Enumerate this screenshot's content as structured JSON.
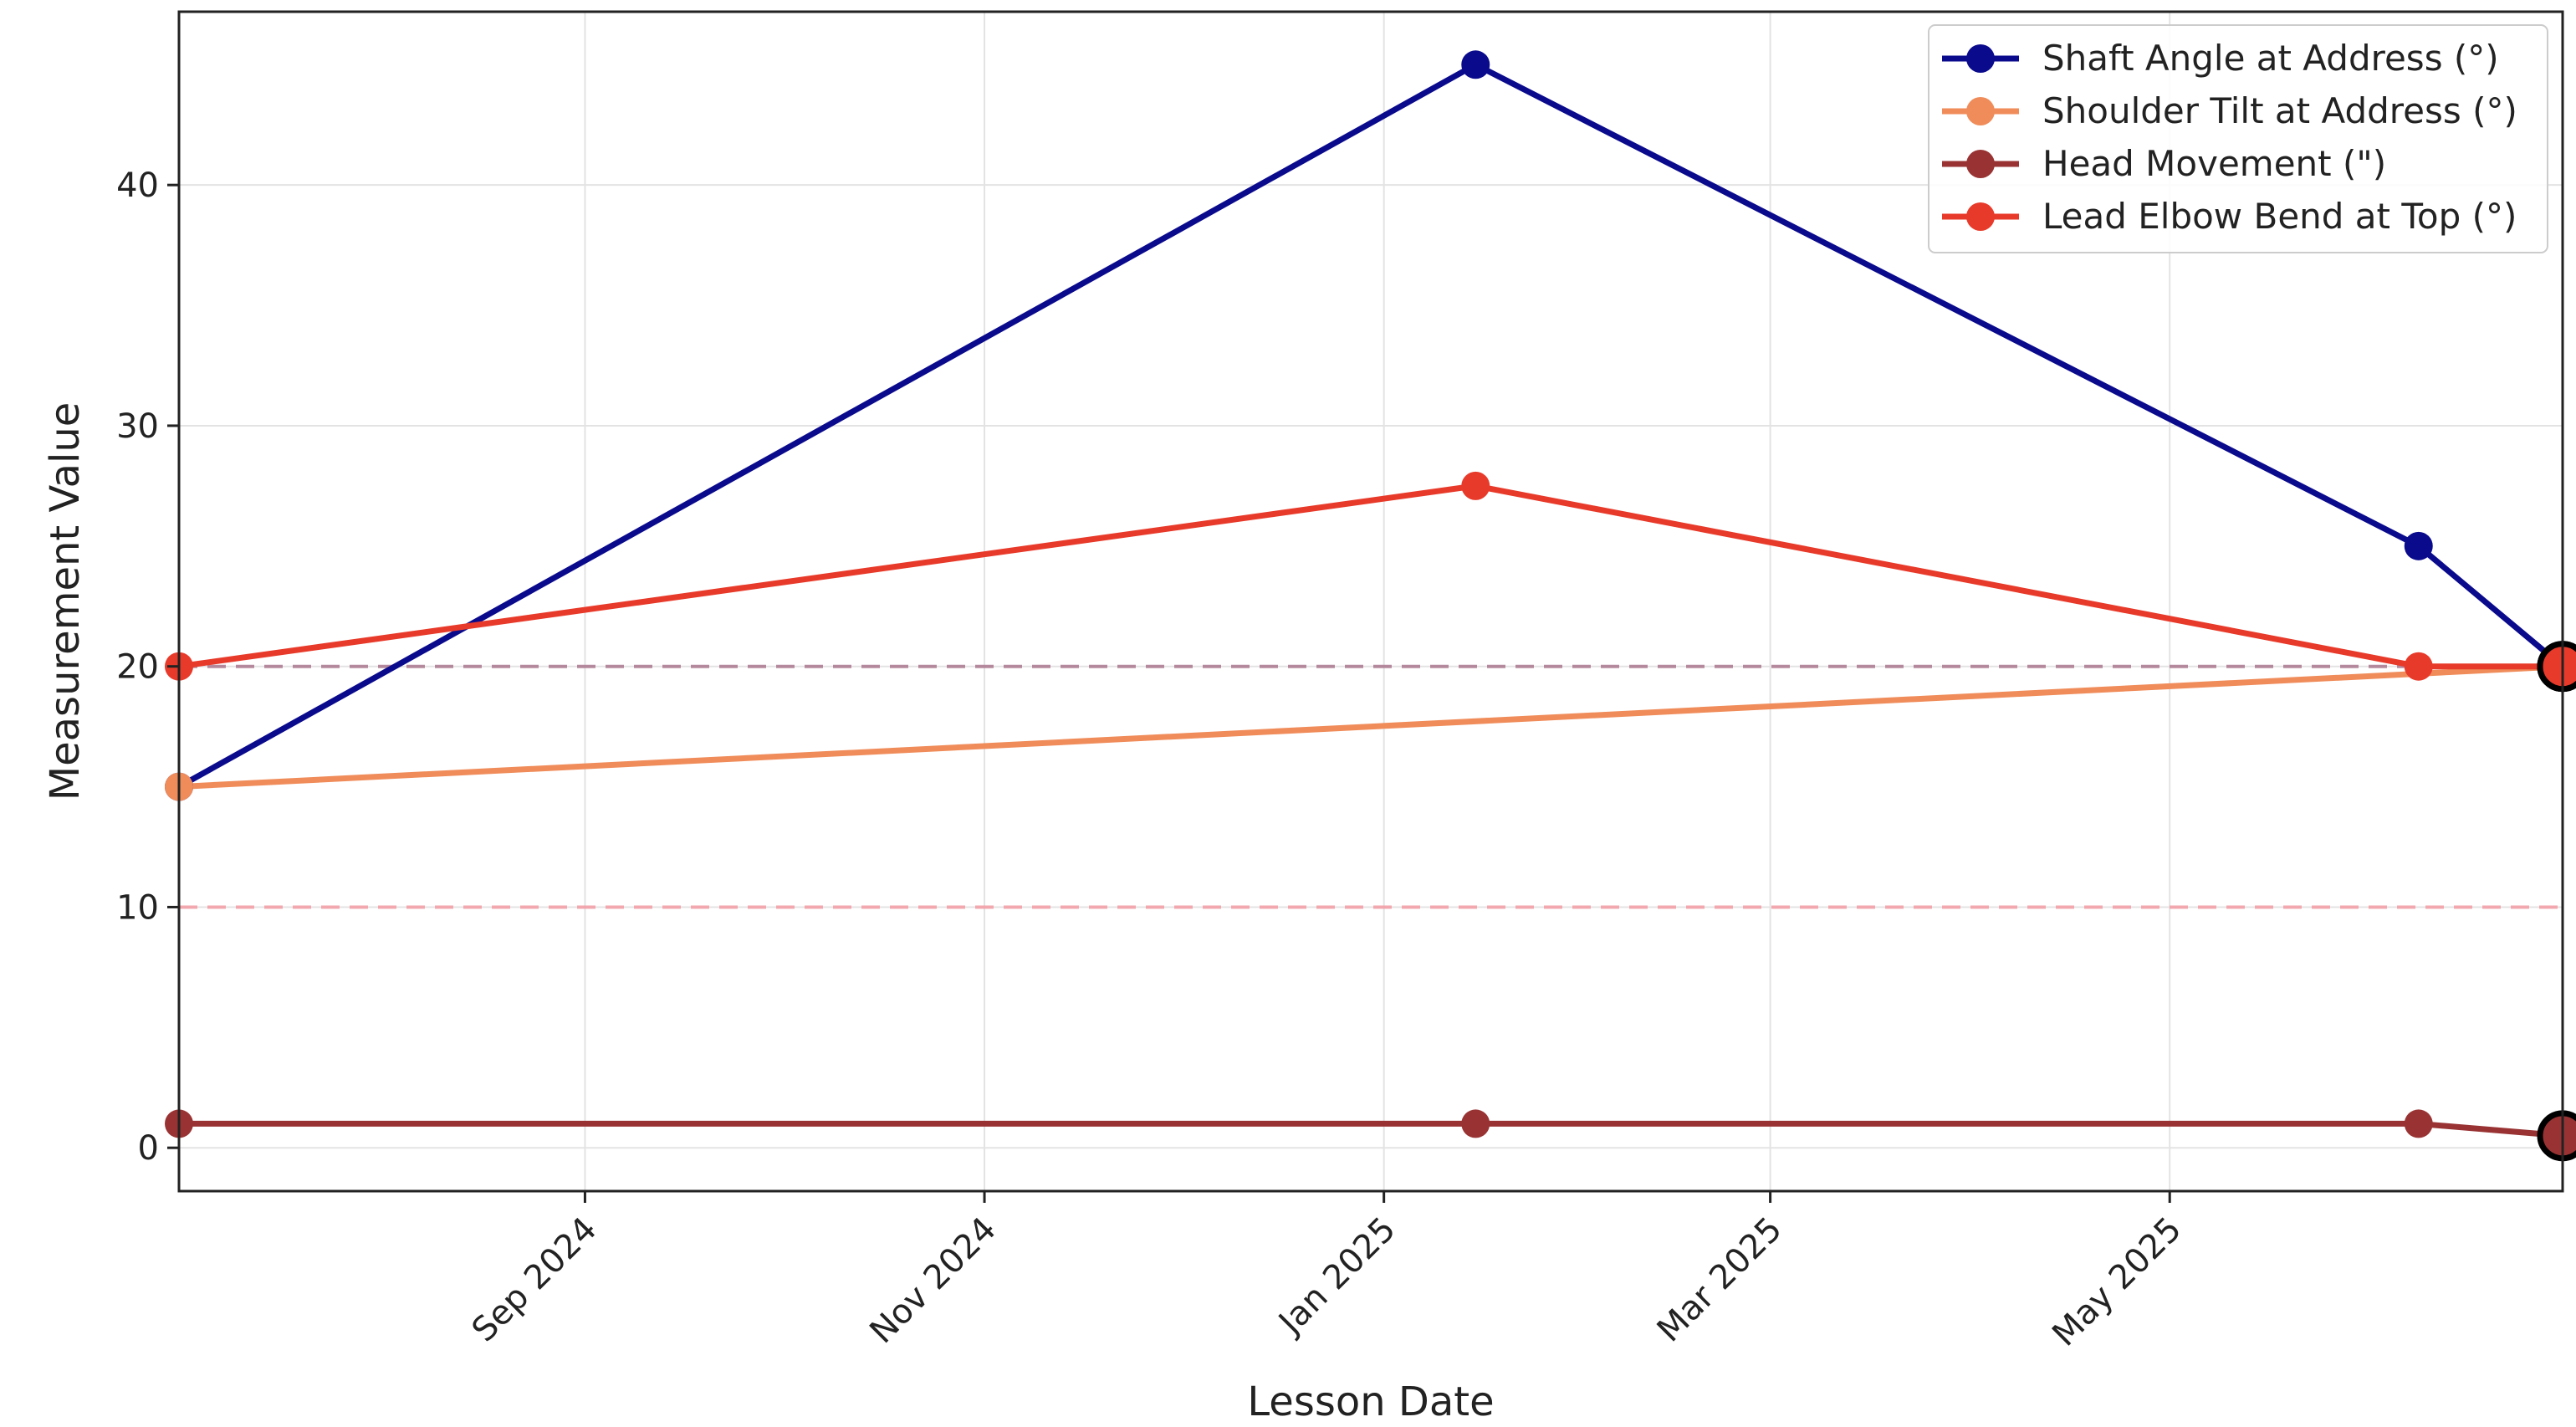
{
  "chart_data": {
    "type": "line",
    "title": "",
    "xlabel": "Lesson Date",
    "ylabel": "Measurement Value",
    "x": [
      "2024-07-01",
      "2025-01-15",
      "2025-06-08",
      "2025-06-30"
    ],
    "xlim": [
      "2024-07-01",
      "2025-06-30"
    ],
    "ylim": [
      -1.8,
      47.2
    ],
    "x_ticks": [
      {
        "date": "2024-09-01",
        "label": "Sep 2024"
      },
      {
        "date": "2024-11-01",
        "label": "Nov 2024"
      },
      {
        "date": "2025-01-01",
        "label": "Jan 2025"
      },
      {
        "date": "2025-03-01",
        "label": "Mar 2025"
      },
      {
        "date": "2025-05-01",
        "label": "May 2025"
      }
    ],
    "y_ticks": [
      0,
      10,
      20,
      30,
      40
    ],
    "grid": true,
    "legend_position": "top-right",
    "series": [
      {
        "name": "Shaft Angle at Address (°)",
        "color": "#0a0a8c",
        "values": [
          15,
          45,
          25,
          20
        ]
      },
      {
        "name": "Shoulder Tilt at Address (°)",
        "color": "#f08c5a",
        "values": [
          15,
          null,
          null,
          20
        ]
      },
      {
        "name": "Head Movement (\")",
        "color": "#993333",
        "values": [
          1,
          1,
          1,
          0.5
        ]
      },
      {
        "name": "Lead Elbow Bend at Top (°)",
        "color": "#e83a2a",
        "values": [
          20,
          27.5,
          20,
          20
        ]
      }
    ],
    "reference_lines": [
      {
        "value": 20,
        "color": "#b07f94"
      },
      {
        "value": 10,
        "color": "#f2a0a8"
      }
    ],
    "highlighted_last_point": true
  }
}
